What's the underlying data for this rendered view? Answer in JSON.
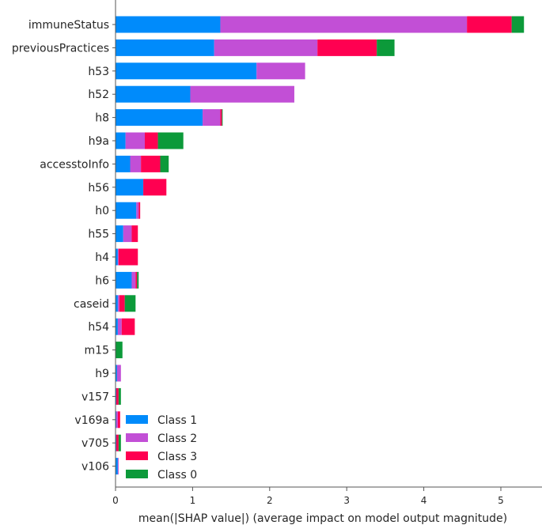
{
  "chart_data": {
    "type": "bar",
    "orientation": "horizontal",
    "stacked": true,
    "xlabel": "mean(|SHAP value|) (average impact on model output magnitude)",
    "ylabel": "",
    "title": "",
    "xlim": [
      0,
      5.5
    ],
    "xticks": [
      "0",
      "1",
      "2",
      "3",
      "4",
      "5"
    ],
    "legend_position": "bottom-left",
    "grid": false,
    "categories": [
      "immuneStatus",
      "previousPractices",
      "h53",
      "h52",
      "h8",
      "h9a",
      "accesstoInfo",
      "h56",
      "h0",
      "h55",
      "h4",
      "h6",
      "caseid",
      "h54",
      "m15",
      "h9",
      "v157",
      "v169a",
      "v705",
      "v106"
    ],
    "series": [
      {
        "name": "Class 1",
        "color": "#008bfb",
        "values": [
          1.36,
          1.28,
          1.83,
          0.97,
          1.13,
          0.13,
          0.19,
          0.36,
          0.27,
          0.1,
          0.03,
          0.21,
          0.03,
          0.03,
          0.0,
          0.02,
          0.01,
          0.01,
          0.01,
          0.03
        ]
      },
      {
        "name": "Class 2",
        "color": "#c24fd6",
        "values": [
          3.2,
          1.34,
          0.63,
          1.35,
          0.23,
          0.25,
          0.14,
          0.0,
          0.03,
          0.11,
          0.01,
          0.05,
          0.02,
          0.05,
          0.0,
          0.05,
          0.0,
          0.02,
          0.0,
          0.01
        ]
      },
      {
        "name": "Class 3",
        "color": "#ff0051",
        "values": [
          0.58,
          0.77,
          0.0,
          0.0,
          0.02,
          0.17,
          0.25,
          0.3,
          0.02,
          0.08,
          0.25,
          0.02,
          0.07,
          0.17,
          0.0,
          0.0,
          0.03,
          0.03,
          0.03,
          0.0
        ]
      },
      {
        "name": "Class 0",
        "color": "#0c9a3a",
        "values": [
          0.16,
          0.23,
          0.0,
          0.0,
          0.01,
          0.33,
          0.11,
          0.0,
          0.0,
          0.0,
          0.0,
          0.02,
          0.14,
          0.0,
          0.09,
          0.0,
          0.03,
          0.0,
          0.03,
          0.0
        ]
      }
    ],
    "legend_order": [
      "Class 1",
      "Class 2",
      "Class 3",
      "Class 0"
    ]
  }
}
